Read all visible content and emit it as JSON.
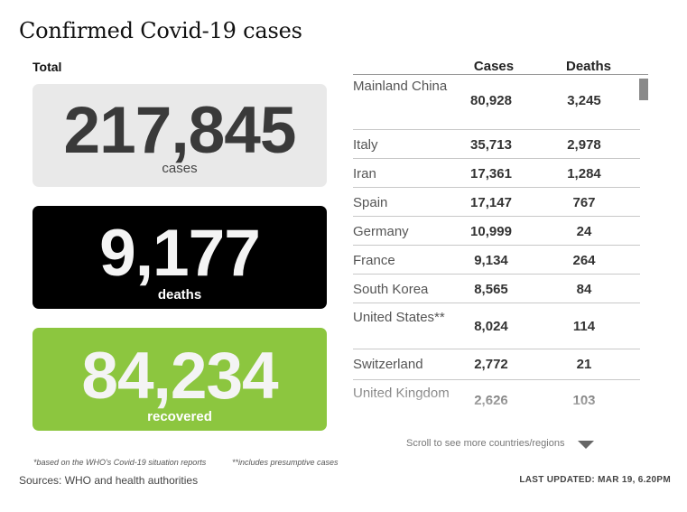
{
  "title": "Confirmed Covid-19 cases",
  "total_label": "Total",
  "stats": {
    "cases": {
      "value": "217,845",
      "label": "cases"
    },
    "deaths": {
      "value": "9,177",
      "label": "deaths"
    },
    "recovered": {
      "value": "84,234",
      "label": "recovered"
    }
  },
  "table": {
    "headers": {
      "cases": "Cases",
      "deaths": "Deaths"
    },
    "rows": [
      {
        "country": "Mainland China",
        "cases": "80,928",
        "deaths": "3,245"
      },
      {
        "country": "Italy",
        "cases": "35,713",
        "deaths": "2,978"
      },
      {
        "country": "Iran",
        "cases": "17,361",
        "deaths": "1,284"
      },
      {
        "country": "Spain",
        "cases": "17,147",
        "deaths": "767"
      },
      {
        "country": "Germany",
        "cases": "10,999",
        "deaths": "24"
      },
      {
        "country": "France",
        "cases": "9,134",
        "deaths": "264"
      },
      {
        "country": "South Korea",
        "cases": "8,565",
        "deaths": "84"
      },
      {
        "country": "United States**",
        "cases": "8,024",
        "deaths": "114"
      },
      {
        "country": "Switzerland",
        "cases": "2,772",
        "deaths": "21"
      },
      {
        "country": "United Kingdom",
        "cases": "2,626",
        "deaths": "103"
      }
    ]
  },
  "scroll_hint": "Scroll to see more countries/regions",
  "footnotes": {
    "who": "*based on the WHO's Covid-19 situation reports",
    "presumptive": "**includes presumptive cases"
  },
  "sources": "Sources: WHO and health authorities",
  "last_updated": "LAST UPDATED: MAR 19, 6.20PM",
  "colors": {
    "cases_box": "#e9e9e9",
    "deaths_box": "#000000",
    "recovered_box": "#8cc63f"
  }
}
